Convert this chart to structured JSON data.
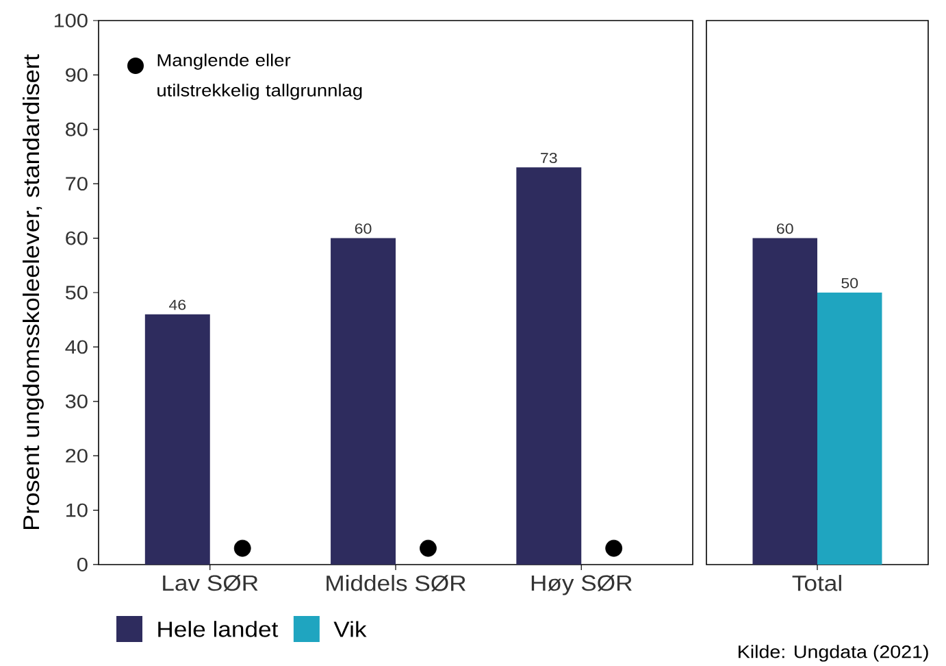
{
  "chart_data": [
    {
      "type": "bar",
      "ylabel": "Prosent ungdomsskoleelever, standardisert",
      "categories": [
        "Lav SØR",
        "Middels SØR",
        "Høy SØR"
      ],
      "series": [
        {
          "name": "Hele landet",
          "color": "#2e2c5e",
          "values": [
            46,
            60,
            73
          ],
          "value_labels": [
            "46",
            "60",
            "73"
          ]
        },
        {
          "name": "Vik",
          "color": "#1fa5c0",
          "values": [
            null,
            null,
            null
          ]
        },
        {
          "name": "Manglende eller utilstrekkelig tallgrunnlag",
          "type": "scatter",
          "color": "#000000",
          "values": [
            3,
            3,
            3
          ]
        }
      ],
      "ylim": [
        0,
        100
      ],
      "yticks": [
        0,
        10,
        20,
        30,
        40,
        50,
        60,
        70,
        80,
        90,
        100
      ],
      "legend": "bottom"
    },
    {
      "type": "bar",
      "categories": [
        "Total"
      ],
      "series": [
        {
          "color": "#2e2c5e",
          "values": [
            60
          ]
        },
        {
          "color": "#1fa5c0",
          "values": [
            50
          ]
        }
      ],
      "ylim": [
        0,
        100
      ],
      "tick_labels": "x",
      "data_labels": true,
      "annotations": [
        "Kilde: Ungdata (2021)"
      ]
    }
  ]
}
